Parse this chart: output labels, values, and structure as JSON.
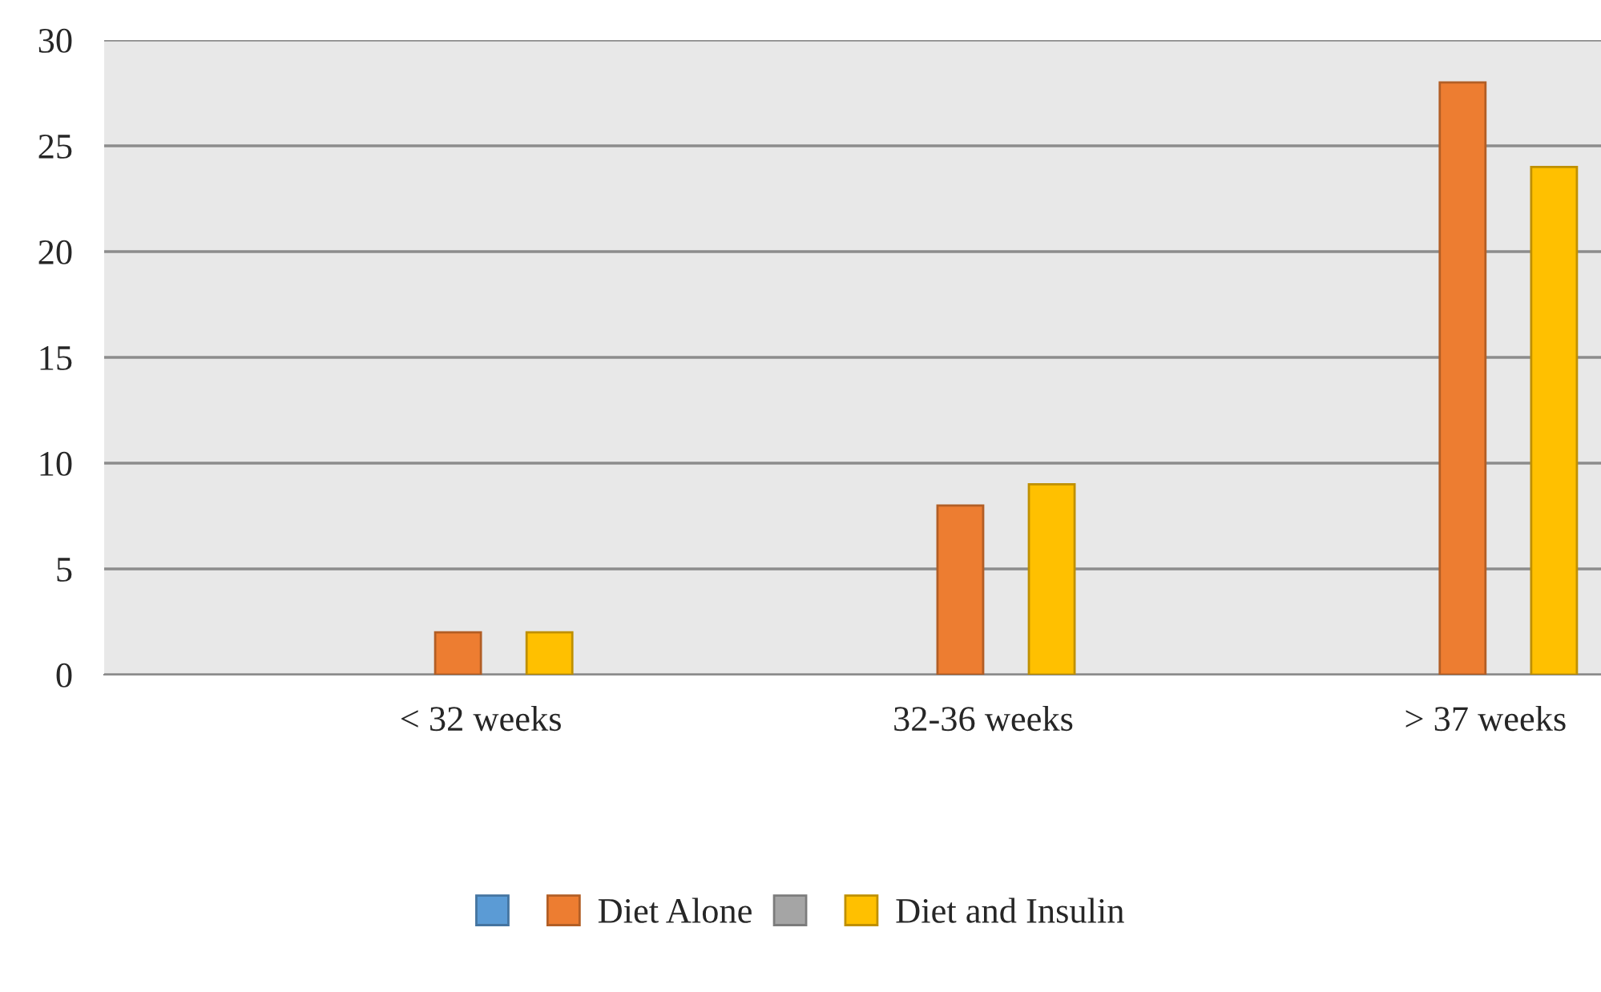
{
  "chart_data": {
    "type": "bar",
    "categories": [
      "< 32 weeks",
      "32-36 weeks",
      "> 37 weeks"
    ],
    "series": [
      {
        "color": "#5b9bd5",
        "values": [
          null,
          null,
          null
        ]
      },
      {
        "name": "Diet Alone",
        "color": "#ed7d31",
        "values": [
          2,
          8,
          28
        ]
      },
      {
        "color": "#a5a5a5",
        "values": [
          null,
          null,
          null
        ]
      },
      {
        "name": "Diet and Insulin",
        "color": "#ffc000",
        "values": [
          2,
          9,
          24
        ]
      }
    ],
    "ylim": [
      0,
      30
    ],
    "yticks": [
      0,
      5,
      10,
      15,
      20,
      25,
      30
    ],
    "grid": "y",
    "legend": "bottom"
  }
}
